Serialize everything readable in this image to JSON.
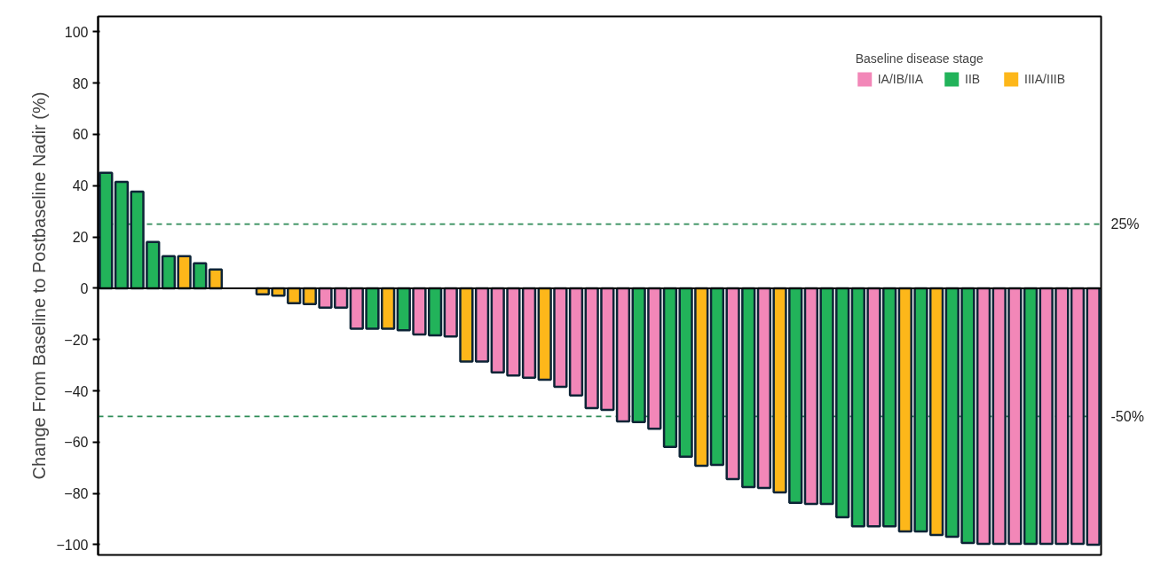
{
  "chart_data": {
    "type": "bar",
    "ylabel": "Change From Baseline to Postbaseline Nadir (%)",
    "legend_title": "Baseline disease stage",
    "legend": "top right",
    "grid": false,
    "categories": [
      null,
      null,
      null,
      null,
      null,
      null,
      null,
      null,
      null,
      null,
      null,
      null,
      null,
      null,
      null,
      null,
      null,
      null,
      null,
      null,
      null,
      null,
      null,
      null,
      null,
      null,
      null,
      null,
      null,
      null,
      null,
      null,
      null,
      null,
      null,
      null,
      null,
      null,
      null,
      null,
      null,
      null,
      null,
      null,
      null,
      null,
      null,
      null,
      null,
      null,
      null,
      null,
      null,
      null,
      null,
      null,
      null,
      null,
      null,
      null,
      null,
      null,
      null,
      null
    ],
    "series": [
      {
        "name": "IA/IB/IIA",
        "color": "#f287b8",
        "values": [
          null,
          null,
          null,
          null,
          null,
          null,
          null,
          null,
          null,
          null,
          null,
          null,
          null,
          null,
          -7.6,
          -7.6,
          -15.8,
          null,
          null,
          null,
          -18,
          null,
          -18.8,
          null,
          -28.6,
          -32.8,
          -34,
          -34.9,
          null,
          -38.4,
          -41.8,
          -46.7,
          -47.4,
          -51.9,
          null,
          -54.8,
          null,
          null,
          null,
          null,
          -74.4,
          null,
          -77.9,
          null,
          null,
          -84.1,
          null,
          null,
          null,
          -92.8,
          null,
          null,
          null,
          null,
          null,
          null,
          -99.7,
          -99.7,
          -99.7,
          null,
          -99.7,
          -99.7,
          -99.7,
          -100
        ]
      },
      {
        "name": "IIB",
        "color": "#22b35a",
        "values": [
          45,
          41.5,
          37.7,
          18,
          12.5,
          null,
          9.7,
          null,
          null,
          null,
          null,
          null,
          null,
          null,
          null,
          null,
          null,
          -15.8,
          null,
          -16.4,
          null,
          -18.4,
          null,
          null,
          null,
          null,
          null,
          null,
          null,
          null,
          null,
          null,
          null,
          null,
          -52.2,
          null,
          -61.9,
          -65.7,
          null,
          -68.9,
          null,
          -77.5,
          null,
          null,
          -83.7,
          null,
          -84.1,
          -89.3,
          -92.8,
          null,
          -92.8,
          null,
          -94.8,
          null,
          -96.9,
          -99.3,
          null,
          null,
          null,
          -99.7,
          null,
          null,
          null,
          null
        ]
      },
      {
        "name": "IIIA/IIIB",
        "color": "#fdb71a",
        "values": [
          null,
          null,
          null,
          null,
          null,
          12.5,
          null,
          7.3,
          null,
          null,
          -2.4,
          -2.9,
          -5.8,
          -6.2,
          null,
          null,
          null,
          null,
          -15.8,
          null,
          null,
          null,
          null,
          -28.6,
          null,
          null,
          null,
          null,
          -35.7,
          null,
          null,
          null,
          null,
          null,
          null,
          null,
          null,
          null,
          -69.2,
          null,
          null,
          null,
          null,
          -79.6,
          null,
          null,
          null,
          null,
          null,
          null,
          null,
          -94.8,
          null,
          -96.2,
          null,
          null,
          null,
          null,
          null,
          null,
          null,
          null,
          null,
          null
        ]
      }
    ],
    "ylim": [
      -104,
      106
    ],
    "yticks": [
      -100,
      -80,
      -60,
      -40,
      -20,
      0,
      20,
      40,
      60,
      80,
      100
    ],
    "ref_lines": [
      {
        "axis": "y",
        "value": 25,
        "label": "25%",
        "color": "#2e8b57",
        "line_style": "dashed"
      },
      {
        "axis": "y",
        "value": -50,
        "label": "-50%",
        "color": "#2e8b57",
        "line_style": "dashed"
      },
      {
        "axis": "y",
        "value": 0,
        "label": null,
        "color": "#000000",
        "line_style": "solid"
      }
    ]
  }
}
